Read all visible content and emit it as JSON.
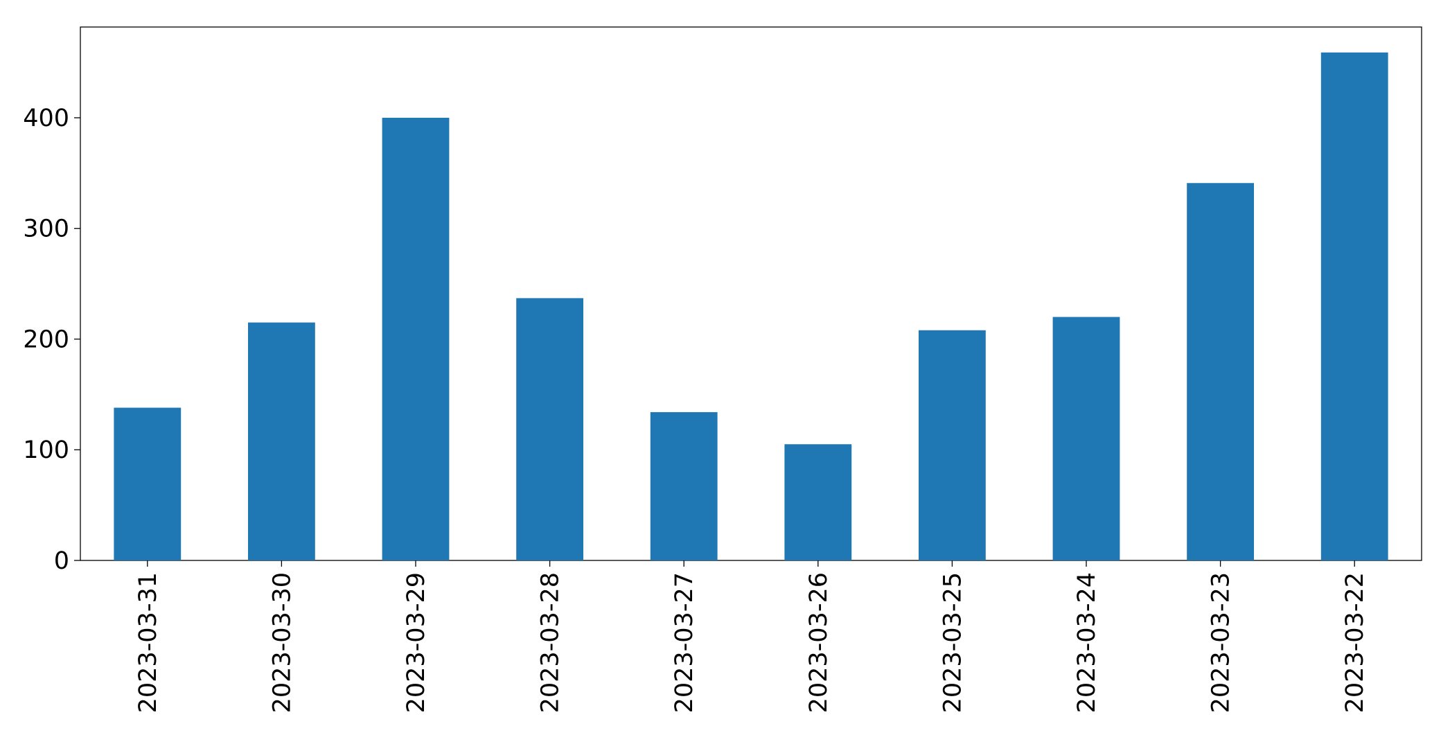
{
  "chart_data": {
    "type": "bar",
    "categories": [
      "2023-03-31",
      "2023-03-30",
      "2023-03-29",
      "2023-03-28",
      "2023-03-27",
      "2023-03-26",
      "2023-03-25",
      "2023-03-24",
      "2023-03-23",
      "2023-03-22"
    ],
    "values": [
      138,
      215,
      400,
      237,
      134,
      105,
      208,
      220,
      341,
      459
    ],
    "color": "#1f77b4",
    "ylim": [
      0,
      482
    ],
    "yticks": [
      0,
      100,
      200,
      300,
      400
    ],
    "grid": false
  }
}
